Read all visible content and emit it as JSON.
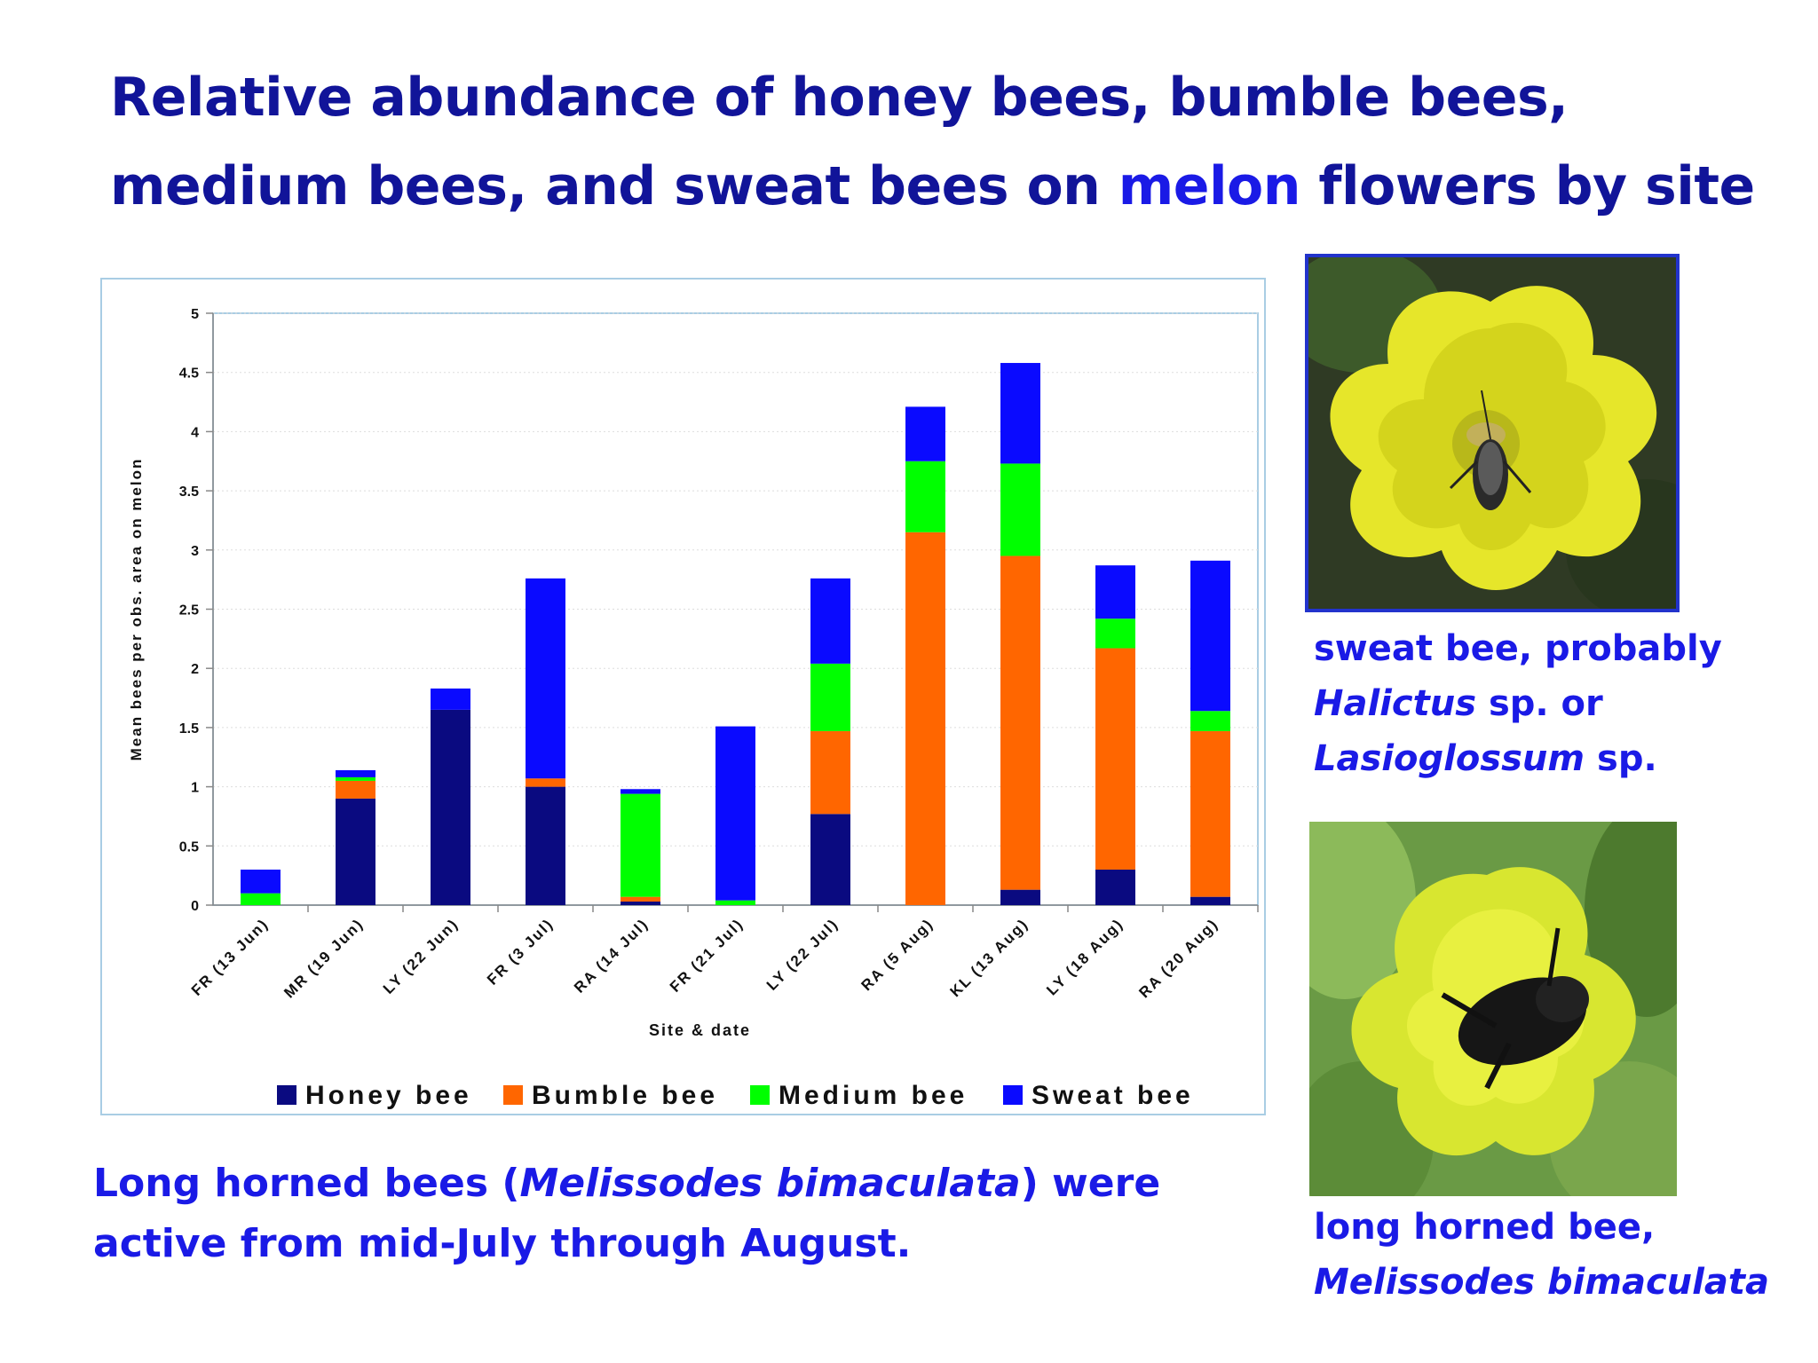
{
  "title": {
    "line1": "Relative abundance of honey bees, bumble bees,",
    "line2_pre": "medium bees, and sweat bees on ",
    "line2_highlight": "melon",
    "line2_post": " flowers by site"
  },
  "chart_data": {
    "type": "bar",
    "stacked": true,
    "categories": [
      "FR (13 Jun)",
      "MR (19 Jun)",
      "LY (22 Jun)",
      "FR (3 Jul)",
      "RA (14 Jul)",
      "FR (21 Jul)",
      "LY (22 Jul)",
      "RA (5 Aug)",
      "KL (13 Aug)",
      "LY (18 Aug)",
      "RA (20 Aug)"
    ],
    "series": [
      {
        "name": "Honey bee",
        "color": "#0a0a80",
        "values": [
          0,
          0.9,
          1.65,
          1.0,
          0.03,
          0,
          0.77,
          0,
          0.13,
          0.3,
          0.07
        ]
      },
      {
        "name": "Bumble bee",
        "color": "#ff6600",
        "values": [
          0,
          0.15,
          0,
          0.07,
          0.04,
          0,
          0.7,
          3.15,
          2.82,
          1.87,
          1.4
        ]
      },
      {
        "name": "Medium bee",
        "color": "#00ff00",
        "values": [
          0.1,
          0.03,
          0,
          0,
          0.87,
          0.04,
          0.57,
          0.6,
          0.78,
          0.25,
          0.17
        ]
      },
      {
        "name": "Sweat bee",
        "color": "#0a0aff",
        "values": [
          0.2,
          0.06,
          0.18,
          1.69,
          0.04,
          1.47,
          0.72,
          0.46,
          0.85,
          0.45,
          1.27
        ]
      }
    ],
    "ylim": [
      0,
      5
    ],
    "yticks": [
      "0",
      "0.5",
      "1",
      "1.5",
      "2",
      "2.5",
      "3",
      "3.5",
      "4",
      "4.5",
      "5"
    ],
    "ylabel": "Mean bees per obs. area on melon",
    "xlabel": "Site & date",
    "legend_position": "bottom",
    "grid": true,
    "title": ""
  },
  "captions": {
    "bottom_pre": "Long horned bees (",
    "bottom_italic": "Melissodes bimaculata",
    "bottom_post": ") were active from mid-July through August.",
    "sweat_line1": "sweat bee, probably",
    "sweat_it1": "Halictus",
    "sweat_mid": " sp. or",
    "sweat_it2": "Lasioglossum",
    "sweat_end": " sp.",
    "long_line1": "long horned bee,",
    "long_italic": "Melissodes bimaculata"
  }
}
